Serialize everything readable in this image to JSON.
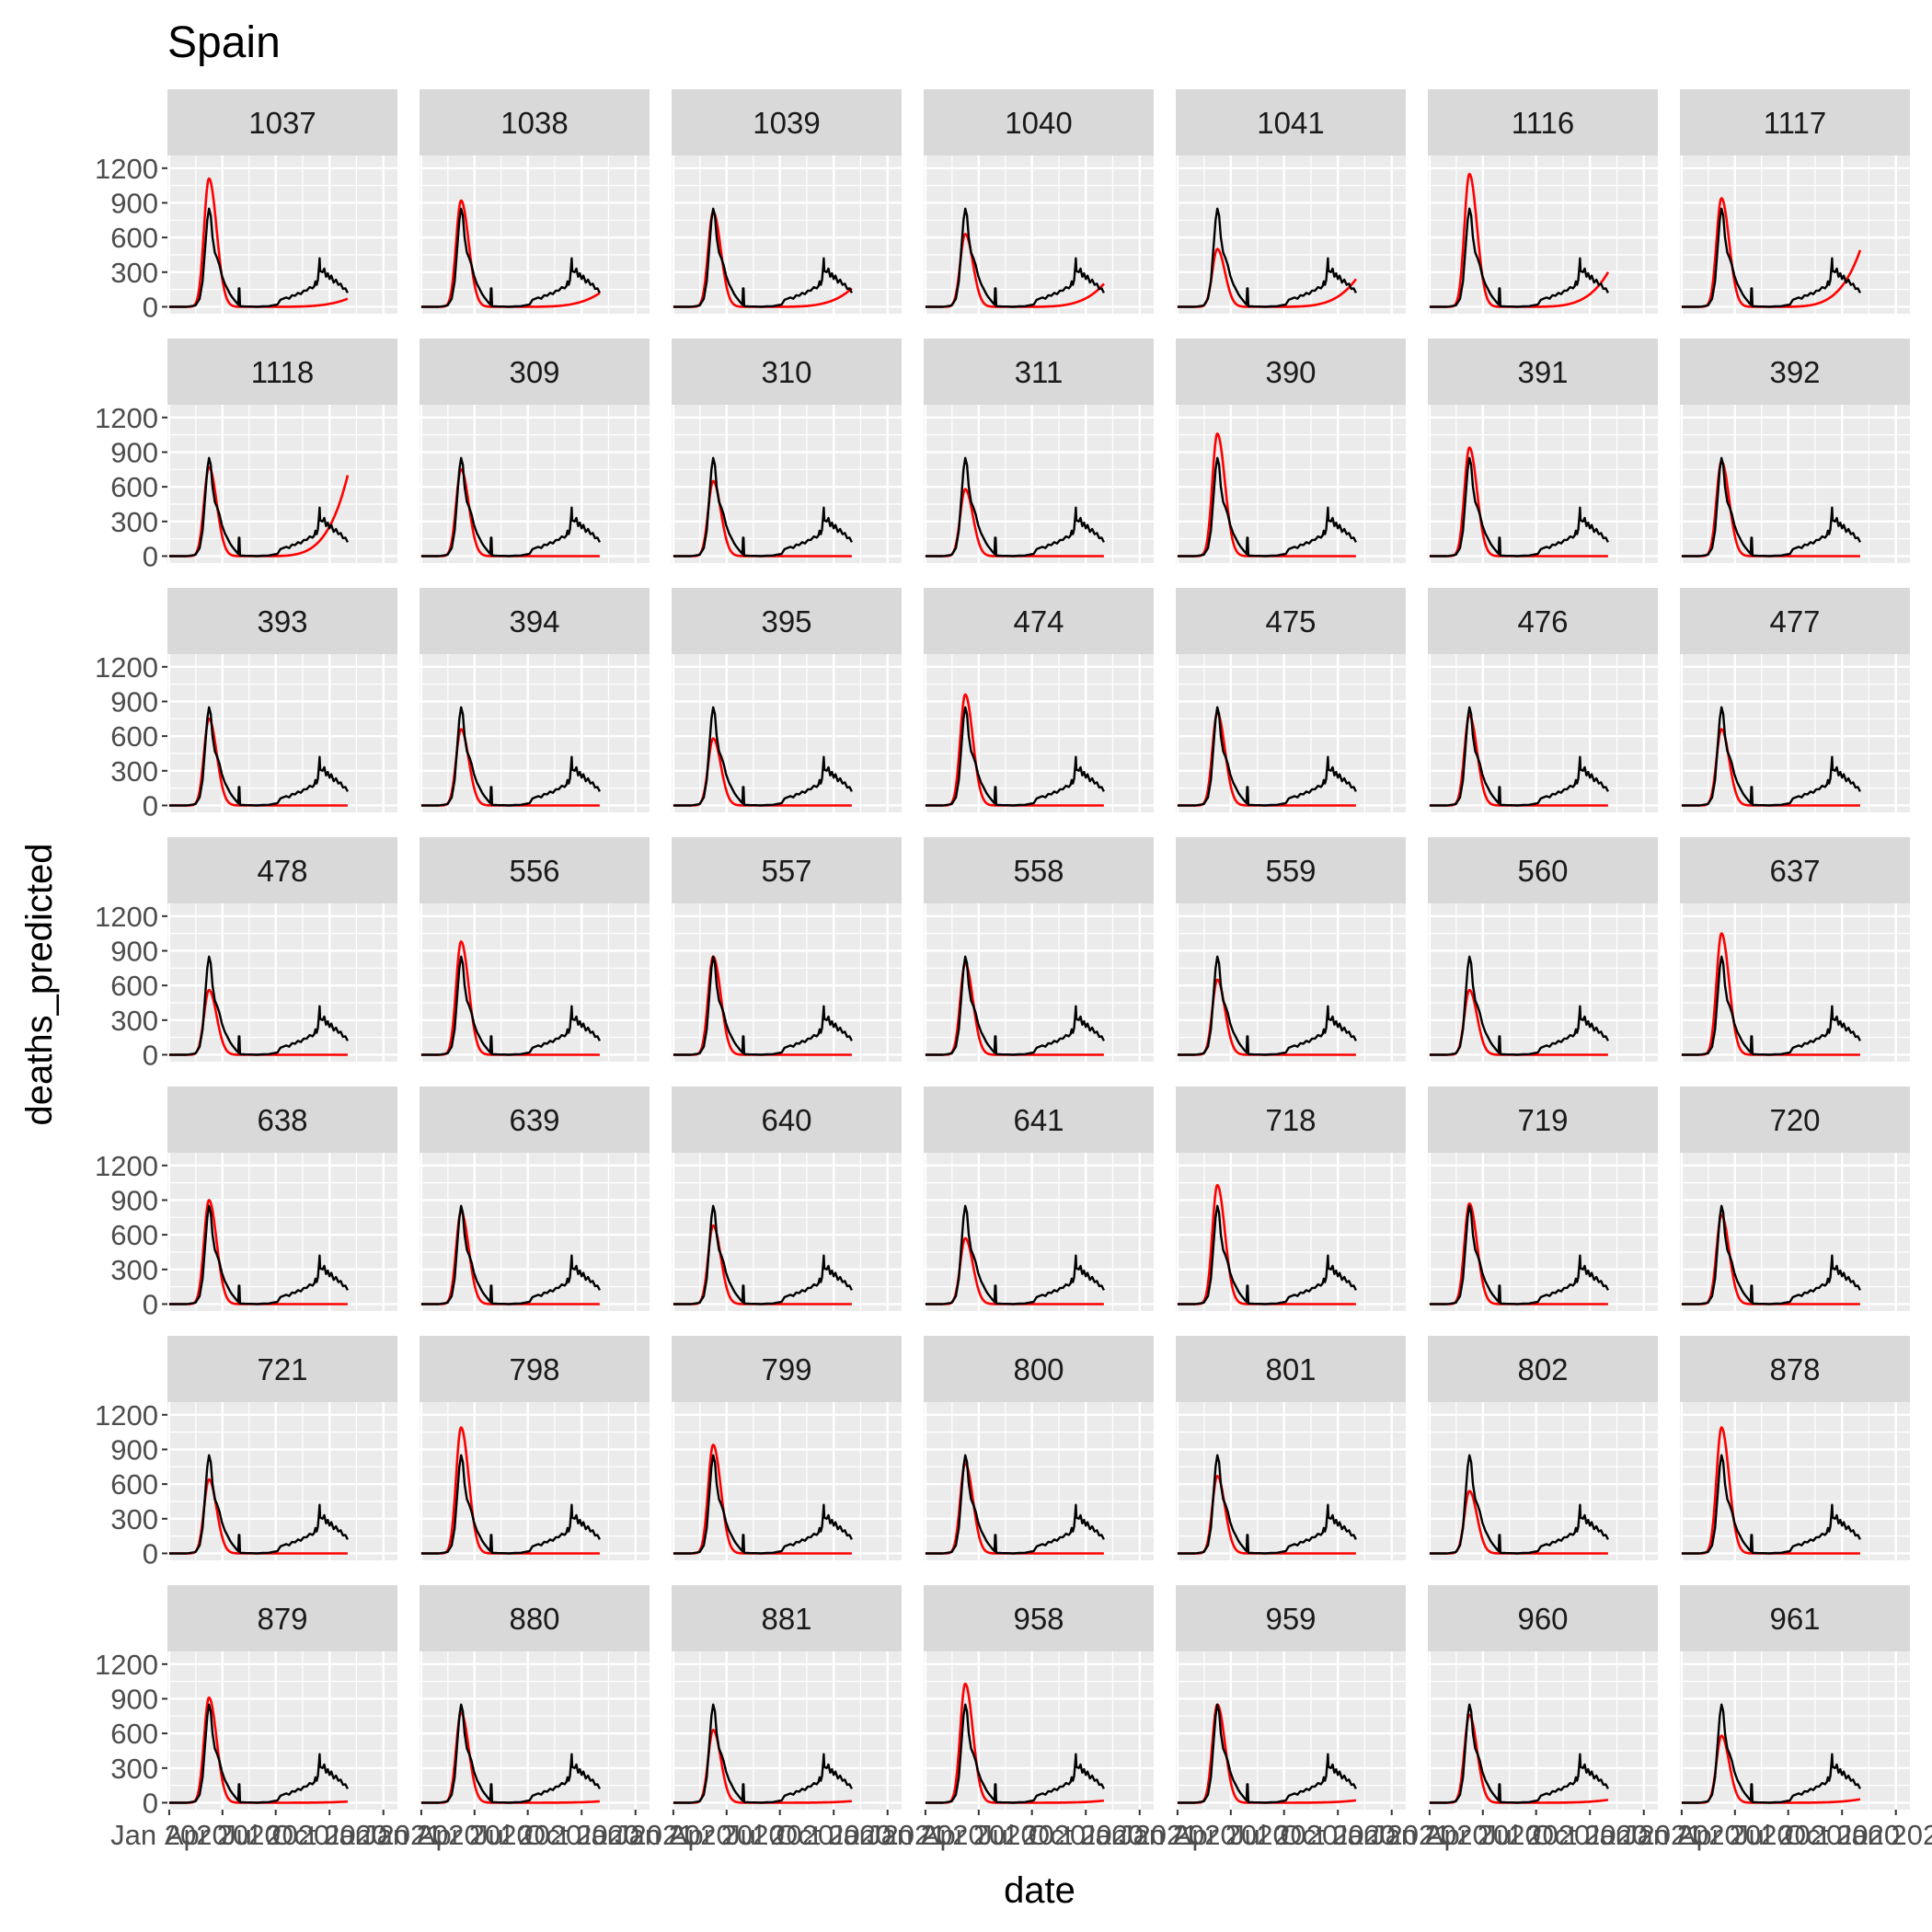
{
  "chart_data": {
    "type": "line",
    "title": "Spain",
    "xlabel": "date",
    "ylabel": "deaths_predicted",
    "facet_layout": {
      "rows": 7,
      "cols": 7
    },
    "panels": [
      "1037",
      "1038",
      "1039",
      "1040",
      "1041",
      "1116",
      "1117",
      "1118",
      "309",
      "310",
      "311",
      "390",
      "391",
      "392",
      "393",
      "394",
      "395",
      "474",
      "475",
      "476",
      "477",
      "478",
      "556",
      "557",
      "558",
      "559",
      "560",
      "637",
      "638",
      "639",
      "640",
      "641",
      "718",
      "719",
      "720",
      "721",
      "798",
      "799",
      "800",
      "801",
      "802",
      "878",
      "879",
      "880",
      "881",
      "958",
      "959",
      "960",
      "961"
    ],
    "y_ticks": [
      "0",
      "300",
      "600",
      "900",
      "1200"
    ],
    "ylim": [
      -60,
      1310
    ],
    "x_ticks": [
      "Jan 2020",
      "Apr 2020",
      "Jul 2020",
      "Oct 2020",
      "Jan 2021"
    ],
    "x_domain_days": [
      -3,
      390
    ],
    "grid": true,
    "legend": "none",
    "colors": {
      "observed": "#000000",
      "predicted": "#ff0000",
      "panel_bg": "#ebebeb",
      "grid": "#ffffff",
      "strip_bg": "#d9d9d9"
    },
    "series": [
      {
        "role": "observed",
        "color": "#000000",
        "points": [
          [
            0,
            0
          ],
          [
            30,
            0
          ],
          [
            45,
            12
          ],
          [
            52,
            70
          ],
          [
            57,
            220
          ],
          [
            61,
            480
          ],
          [
            65,
            750
          ],
          [
            68,
            850
          ],
          [
            71,
            790
          ],
          [
            74,
            600
          ],
          [
            78,
            470
          ],
          [
            82,
            420
          ],
          [
            86,
            360
          ],
          [
            90,
            270
          ],
          [
            95,
            200
          ],
          [
            100,
            150
          ],
          [
            104,
            110
          ],
          [
            108,
            80
          ],
          [
            112,
            55
          ],
          [
            116,
            30
          ],
          [
            118,
            20
          ],
          [
            119,
            160
          ],
          [
            120,
            160
          ],
          [
            121,
            5
          ],
          [
            130,
            3
          ],
          [
            140,
            2
          ],
          [
            150,
            0
          ],
          [
            160,
            4
          ],
          [
            170,
            5
          ],
          [
            180,
            15
          ],
          [
            185,
            20
          ],
          [
            190,
            60
          ],
          [
            200,
            80
          ],
          [
            205,
            70
          ],
          [
            210,
            100
          ],
          [
            215,
            95
          ],
          [
            220,
            120
          ],
          [
            225,
            110
          ],
          [
            230,
            140
          ],
          [
            235,
            140
          ],
          [
            240,
            170
          ],
          [
            245,
            160
          ],
          [
            248,
            180
          ],
          [
            250,
            220
          ],
          [
            252,
            190
          ],
          [
            254,
            230
          ],
          [
            256,
            350
          ],
          [
            257,
            420
          ],
          [
            258,
            310
          ],
          [
            262,
            300
          ],
          [
            265,
            330
          ],
          [
            268,
            260
          ],
          [
            271,
            290
          ],
          [
            274,
            240
          ],
          [
            277,
            270
          ],
          [
            281,
            210
          ],
          [
            285,
            235
          ],
          [
            289,
            190
          ],
          [
            293,
            200
          ],
          [
            297,
            155
          ],
          [
            301,
            160
          ],
          [
            305,
            120
          ]
        ]
      }
    ],
    "predicted_peaks": {
      "1037": 1110,
      "1038": 920,
      "1039": 820,
      "1040": 630,
      "1041": 500,
      "1116": 1150,
      "1117": 940,
      "1118": 770,
      "309": 750,
      "310": 650,
      "311": 580,
      "390": 1060,
      "391": 940,
      "392": 820,
      "393": 750,
      "394": 660,
      "395": 580,
      "474": 960,
      "475": 800,
      "476": 780,
      "477": 660,
      "478": 560,
      "556": 980,
      "557": 850,
      "558": 790,
      "559": 650,
      "560": 560,
      "637": 1050,
      "638": 900,
      "639": 800,
      "640": 680,
      "641": 570,
      "718": 1030,
      "719": 870,
      "720": 770,
      "721": 640,
      "798": 1090,
      "799": 940,
      "800": 780,
      "801": 670,
      "802": 540,
      "878": 1090,
      "879": 910,
      "880": 780,
      "881": 630,
      "958": 1030,
      "959": 850,
      "960": 760,
      "961": 580
    },
    "predicted_tail_end": {
      "1037": 70,
      "1038": 120,
      "1039": 160,
      "1040": 200,
      "1041": 240,
      "1116": 300,
      "1117": 490,
      "1118": 700,
      "879": 10,
      "880": 12,
      "881": 14,
      "958": 18,
      "959": 20,
      "960": 25,
      "961": 30
    }
  }
}
